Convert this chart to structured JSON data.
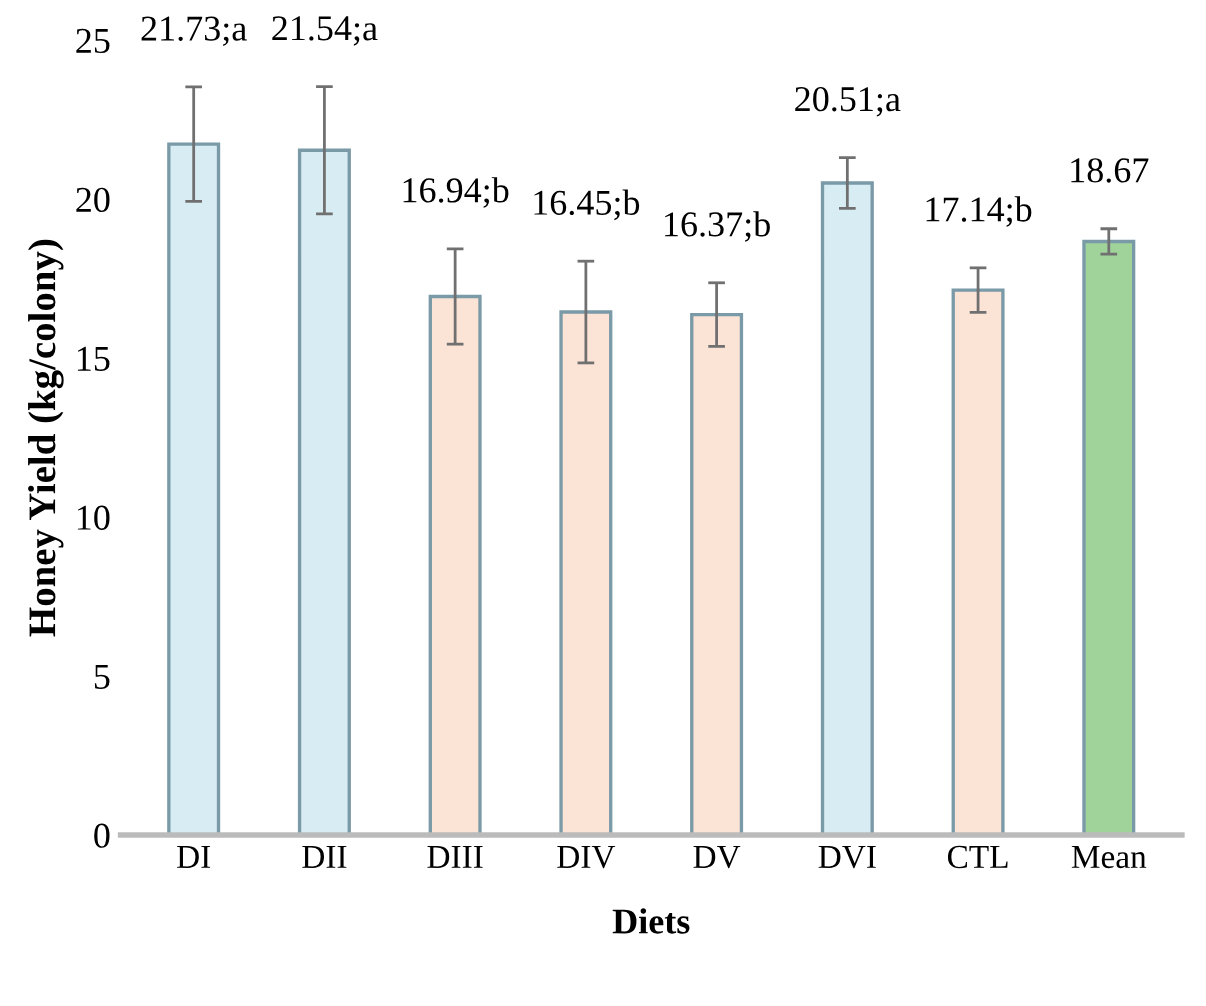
{
  "chart_data": {
    "type": "bar",
    "xlabel": "Diets",
    "ylabel": "Honey Yield (kg/colony)",
    "categories": [
      "DI",
      "DII",
      "DIII",
      "DIV",
      "DV",
      "DVI",
      "CTL",
      "Mean"
    ],
    "values": [
      21.73,
      21.54,
      16.94,
      16.45,
      16.37,
      20.51,
      17.14,
      18.67
    ],
    "errors": [
      1.8,
      2.0,
      1.5,
      1.6,
      1.0,
      0.8,
      0.7,
      0.4
    ],
    "value_labels": [
      "21.73;a",
      "21.54;a",
      "16.94;b",
      "16.45;b",
      "16.37;b",
      "20.51;a",
      "17.14;b",
      "18.67"
    ],
    "colors": [
      "#d8ecf4",
      "#d8ecf4",
      "#fbe3d6",
      "#fbe3d6",
      "#fbe3d6",
      "#d8ecf4",
      "#fbe3d6",
      "#9fd39a"
    ],
    "ylim": [
      0,
      25
    ],
    "yticks": [
      0,
      5,
      10,
      15,
      20,
      25
    ],
    "grid": false,
    "legend": false
  }
}
